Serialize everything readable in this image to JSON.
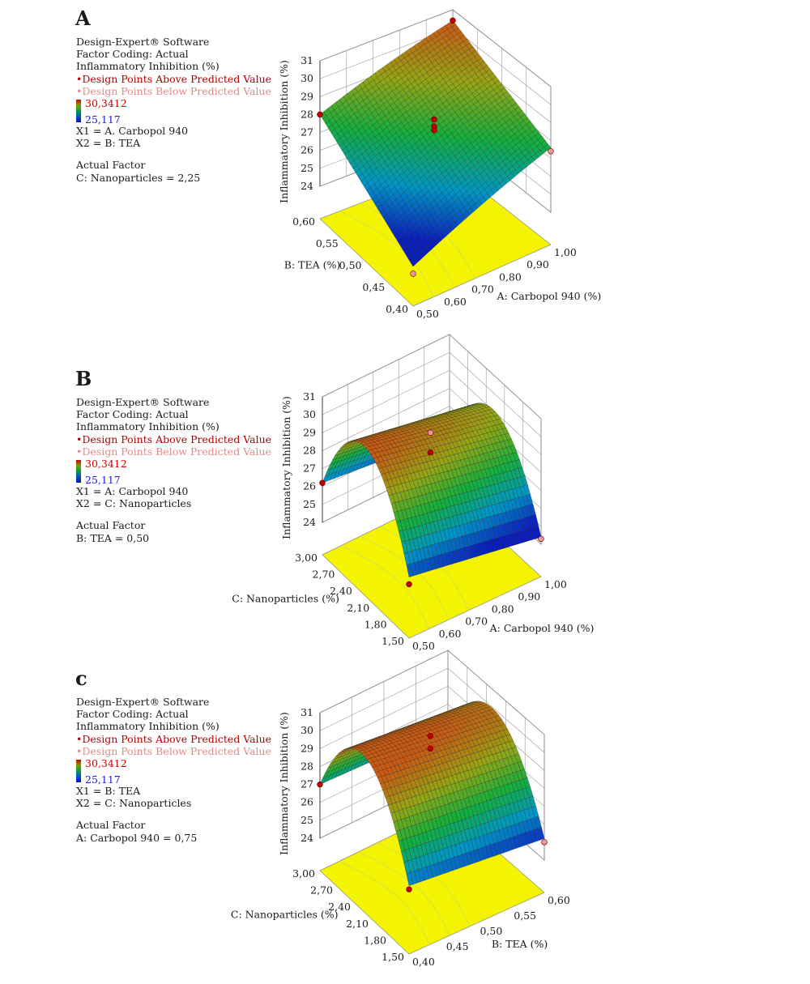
{
  "chart_data": [
    {
      "type": "surface",
      "panel_label": "A",
      "software": "Design-Expert® Software",
      "factor_coding": "Factor Coding: Actual",
      "response": "Inflammatory Inhibition (%)",
      "legend_above": "Design Points Above Predicted Value",
      "legend_below": "Design Points Below Predicted Value",
      "color_scale": {
        "max_label": "30,3412",
        "min_label": "25,117",
        "max": 30.3412,
        "min": 25.117
      },
      "x1_text": "X1 = A. Carbopol 940",
      "x2_text": "X2 = B: TEA",
      "actual_factor_heading": "Actual Factor",
      "actual_factor_text": "C: Nanoparticles = 2,25",
      "xlabel": "A: Carbopol 940 (%)",
      "ylabel": "B: TEA (%)",
      "zlabel": "Inflammatory Inhibition (%)",
      "x_ticks": [
        "0,50",
        "0,60",
        "0,70",
        "0,80",
        "0,90",
        "1,00"
      ],
      "y_ticks": [
        "0,40",
        "0,45",
        "0,50",
        "0,55",
        "0,60"
      ],
      "z_ticks": [
        "24",
        "25",
        "26",
        "27",
        "28",
        "29",
        "30",
        "31"
      ],
      "xlim": [
        0.5,
        1.0
      ],
      "ylim": [
        0.4,
        0.6
      ],
      "zlim": [
        24,
        31
      ],
      "surface_corners": {
        "x_min_y_min": 24.4,
        "x_max_y_min": 27.6,
        "x_min_y_max": 28.0,
        "x_max_y_max": 30.4
      },
      "surface_curvature": 0.5,
      "design_points": [
        {
          "x": 0.5,
          "y": 0.6,
          "z": 28.0,
          "position": "above"
        },
        {
          "x": 1.0,
          "y": 0.6,
          "z": 30.4,
          "position": "above"
        },
        {
          "x": 0.75,
          "y": 0.5,
          "z": 28.6,
          "position": "above"
        },
        {
          "x": 0.75,
          "y": 0.5,
          "z": 28.2,
          "position": "above"
        },
        {
          "x": 0.75,
          "y": 0.5,
          "z": 28.0,
          "position": "above"
        },
        {
          "x": 0.5,
          "y": 0.4,
          "z": 24.0,
          "position": "below"
        },
        {
          "x": 1.0,
          "y": 0.4,
          "z": 27.4,
          "position": "below"
        }
      ]
    },
    {
      "type": "surface",
      "panel_label": "B",
      "software": "Design-Expert® Software",
      "factor_coding": "Factor Coding: Actual",
      "response": "Inflammatory Inhibition (%)",
      "legend_above": "Design Points Above Predicted Value",
      "legend_below": "Design Points Below Predicted Value",
      "color_scale": {
        "max_label": "30,3412",
        "min_label": "25,117",
        "max": 30.3412,
        "min": 25.117
      },
      "x1_text": "X1 = A: Carbopol 940",
      "x2_text": "X2 = C: Nanoparticles",
      "actual_factor_heading": "Actual Factor",
      "actual_factor_text": "B: TEA = 0,50",
      "xlabel": "A: Carbopol 940 (%)",
      "ylabel": "C: Nanoparticles (%)",
      "zlabel": "Inflammatory Inhibition (%)",
      "x_ticks": [
        "0,50",
        "0,60",
        "0,70",
        "0,80",
        "0,90",
        "1,00"
      ],
      "y_ticks": [
        "1,50",
        "1,80",
        "2,10",
        "2,40",
        "2,70",
        "3,00"
      ],
      "z_ticks": [
        "24",
        "25",
        "26",
        "27",
        "28",
        "29",
        "30",
        "31"
      ],
      "xlim": [
        0.5,
        1.0
      ],
      "ylim": [
        1.5,
        3.0
      ],
      "zlim": [
        24,
        31
      ],
      "surface_corners": {
        "x_min_y_min": 25.6,
        "x_max_y_min": 24.4,
        "x_min_y_max": 26.2,
        "x_max_y_max": 25.4
      },
      "surface_curvature": 4.6,
      "design_points": [
        {
          "x": 0.5,
          "y": 3.0,
          "z": 26.2,
          "position": "above"
        },
        {
          "x": 0.75,
          "y": 2.25,
          "z": 29.6,
          "position": "below"
        },
        {
          "x": 0.75,
          "y": 2.25,
          "z": 28.5,
          "position": "above"
        },
        {
          "x": 0.5,
          "y": 1.5,
          "z": 25.2,
          "position": "above"
        },
        {
          "x": 1.0,
          "y": 1.5,
          "z": 24.3,
          "position": "below"
        }
      ]
    },
    {
      "type": "surface",
      "panel_label": "c",
      "software": "Design-Expert® Software",
      "factor_coding": "Factor Coding: Actual",
      "response": "Inflammatory Inhibition (%)",
      "legend_above": "Design Points Above Predicted Value",
      "legend_below": "Design Points Below Predicted Value",
      "color_scale": {
        "max_label": "30,3412",
        "min_label": "25,117",
        "max": 30.3412,
        "min": 25.117
      },
      "x1_text": "X1 = B: TEA",
      "x2_text": "X2 = C: Nanoparticles",
      "actual_factor_heading": "Actual Factor",
      "actual_factor_text": "A: Carbopol 940 = 0,75",
      "xlabel": "B: TEA (%)",
      "ylabel": "C: Nanoparticles (%)",
      "zlabel": "Inflammatory Inhibition (%)",
      "x_ticks": [
        "0,40",
        "0,45",
        "0,50",
        "0,55",
        "0,60"
      ],
      "y_ticks": [
        "1,50",
        "1,80",
        "2,10",
        "2,40",
        "2,70",
        "3,00"
      ],
      "z_ticks": [
        "24",
        "25",
        "26",
        "27",
        "28",
        "29",
        "30",
        "31"
      ],
      "xlim": [
        0.4,
        0.6
      ],
      "ylim": [
        1.5,
        3.0
      ],
      "zlim": [
        24,
        31
      ],
      "surface_corners": {
        "x_min_y_min": 26.0,
        "x_max_y_min": 25.2,
        "x_min_y_max": 27.0,
        "x_max_y_max": 26.7
      },
      "surface_curvature": 4.4,
      "design_points": [
        {
          "x": 0.4,
          "y": 3.0,
          "z": 27.0,
          "position": "above"
        },
        {
          "x": 0.5,
          "y": 2.25,
          "z": 30.3,
          "position": "above"
        },
        {
          "x": 0.5,
          "y": 2.25,
          "z": 29.6,
          "position": "above"
        },
        {
          "x": 0.4,
          "y": 1.5,
          "z": 25.8,
          "position": "above"
        },
        {
          "x": 0.6,
          "y": 1.5,
          "z": 25.0,
          "position": "below"
        }
      ]
    }
  ]
}
